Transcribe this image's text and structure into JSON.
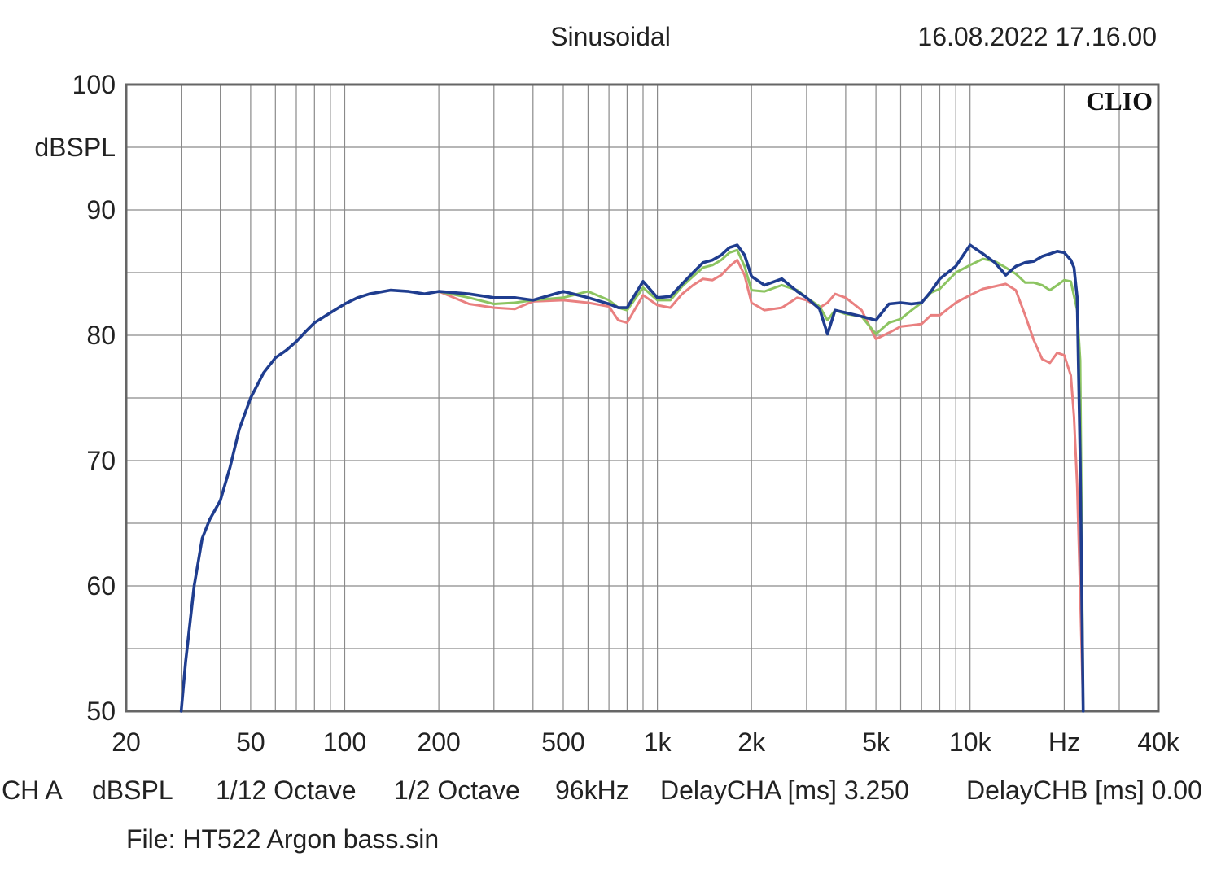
{
  "header": {
    "title": "Sinusoidal",
    "datetime": "16.08.2022 17.16.00",
    "brand": "CLIO"
  },
  "footer": {
    "items": [
      "CH A",
      "dBSPL",
      "1/12 Octave",
      "1/2 Octave",
      "96kHz",
      "DelayCHA [ms] 3.250",
      "DelayCHB [ms] 0.00"
    ],
    "file": "File: HT522 Argon bass.sin"
  },
  "colors": {
    "blue": "#1f3d8f",
    "green": "#8cc461",
    "red": "#e98080",
    "grid": "#8a8a8a",
    "frame": "#666666"
  },
  "chart_data": {
    "type": "line",
    "title": "Sinusoidal",
    "xlabel": "Hz",
    "ylabel": "dBSPL",
    "xscale": "log",
    "xlim": [
      20,
      40000
    ],
    "ylim": [
      50,
      100
    ],
    "grid": true,
    "x_tick_labels": [
      {
        "value": 20,
        "label": "20"
      },
      {
        "value": 50,
        "label": "50"
      },
      {
        "value": 100,
        "label": "100"
      },
      {
        "value": 200,
        "label": "200"
      },
      {
        "value": 500,
        "label": "500"
      },
      {
        "value": 1000,
        "label": "1k"
      },
      {
        "value": 2000,
        "label": "2k"
      },
      {
        "value": 5000,
        "label": "5k"
      },
      {
        "value": 10000,
        "label": "10k"
      },
      {
        "value": 20000,
        "label": "Hz"
      },
      {
        "value": 40000,
        "label": "40k"
      }
    ],
    "y_tick_labels": [
      {
        "value": 100,
        "label": "100"
      },
      {
        "value": 90,
        "label": "90"
      },
      {
        "value": 80,
        "label": "80"
      },
      {
        "value": 70,
        "label": "70"
      },
      {
        "value": 60,
        "label": "60"
      },
      {
        "value": 50,
        "label": "50"
      }
    ],
    "series": [
      {
        "name": "red",
        "color": "#e98080",
        "x": [
          200,
          250,
          300,
          350,
          400,
          500,
          600,
          700,
          750,
          800,
          900,
          1000,
          1100,
          1200,
          1300,
          1400,
          1500,
          1600,
          1700,
          1800,
          1900,
          2000,
          2200,
          2500,
          2800,
          3000,
          3300,
          3500,
          3700,
          4000,
          4500,
          5000,
          5500,
          6000,
          6500,
          7000,
          7500,
          8000,
          9000,
          10000,
          11000,
          12000,
          13000,
          14000,
          15000,
          16000,
          17000,
          18000,
          19000,
          20000,
          21000,
          21500,
          22000,
          22500,
          23000
        ],
        "y": [
          83.5,
          82.5,
          82.2,
          82.1,
          82.7,
          82.8,
          82.6,
          82.3,
          81.2,
          81.0,
          83.2,
          82.4,
          82.2,
          83.3,
          84.0,
          84.5,
          84.4,
          84.8,
          85.5,
          86.0,
          84.8,
          82.6,
          82.0,
          82.2,
          83.0,
          82.8,
          82.2,
          82.6,
          83.3,
          83.0,
          82.0,
          79.7,
          80.2,
          80.7,
          80.8,
          80.9,
          81.6,
          81.6,
          82.6,
          83.2,
          83.7,
          83.9,
          84.1,
          83.6,
          81.6,
          79.6,
          78.1,
          77.8,
          78.6,
          78.4,
          76.8,
          73.5,
          68.0,
          59.5,
          50.0
        ]
      },
      {
        "name": "green",
        "color": "#8cc461",
        "x": [
          200,
          250,
          300,
          350,
          400,
          500,
          600,
          700,
          750,
          800,
          900,
          1000,
          1100,
          1200,
          1300,
          1400,
          1500,
          1600,
          1700,
          1800,
          1900,
          2000,
          2200,
          2500,
          2800,
          3000,
          3300,
          3500,
          3700,
          4000,
          4500,
          5000,
          5500,
          6000,
          6500,
          7000,
          7500,
          8000,
          9000,
          10000,
          11000,
          12000,
          13000,
          14000,
          15000,
          16000,
          17000,
          18000,
          19000,
          20000,
          21000,
          22000,
          22500,
          23000
        ],
        "y": [
          83.5,
          83.0,
          82.5,
          82.6,
          82.8,
          83.0,
          83.5,
          82.8,
          82.2,
          82.0,
          83.8,
          82.8,
          82.8,
          83.9,
          84.7,
          85.4,
          85.6,
          86.0,
          86.6,
          86.8,
          85.5,
          83.6,
          83.5,
          84.0,
          83.6,
          83.0,
          82.3,
          81.2,
          82.0,
          81.7,
          81.5,
          80.1,
          81.0,
          81.3,
          82.0,
          82.6,
          83.4,
          83.7,
          85.0,
          85.6,
          86.1,
          85.9,
          85.4,
          84.9,
          84.2,
          84.2,
          84.0,
          83.6,
          84.0,
          84.4,
          84.3,
          82.0,
          78.0,
          50.0
        ]
      },
      {
        "name": "blue",
        "color": "#1f3d8f",
        "x": [
          30,
          31,
          33,
          35,
          37,
          40,
          43,
          46,
          50,
          55,
          60,
          65,
          70,
          75,
          80,
          90,
          100,
          110,
          120,
          140,
          160,
          180,
          200,
          250,
          300,
          350,
          400,
          500,
          600,
          700,
          750,
          800,
          900,
          1000,
          1100,
          1200,
          1300,
          1400,
          1500,
          1600,
          1700,
          1800,
          1900,
          2000,
          2200,
          2500,
          2800,
          3000,
          3300,
          3500,
          3700,
          4000,
          4500,
          5000,
          5500,
          6000,
          6500,
          7000,
          7500,
          8000,
          9000,
          10000,
          11000,
          12000,
          13000,
          14000,
          15000,
          16000,
          17000,
          18000,
          19000,
          20000,
          21000,
          21500,
          22000,
          22500,
          23000
        ],
        "y": [
          50.0,
          54.0,
          60.0,
          63.8,
          65.3,
          66.8,
          69.5,
          72.5,
          75.0,
          77.0,
          78.2,
          78.8,
          79.5,
          80.3,
          81.0,
          81.8,
          82.5,
          83.0,
          83.3,
          83.6,
          83.5,
          83.3,
          83.5,
          83.3,
          83.0,
          83.0,
          82.8,
          83.5,
          83.0,
          82.5,
          82.2,
          82.2,
          84.3,
          83.0,
          83.1,
          84.1,
          85.0,
          85.8,
          86.0,
          86.4,
          87.0,
          87.2,
          86.4,
          84.7,
          84.0,
          84.5,
          83.5,
          83.0,
          82.1,
          80.1,
          82.0,
          81.8,
          81.5,
          81.2,
          82.5,
          82.6,
          82.5,
          82.6,
          83.5,
          84.5,
          85.5,
          87.2,
          86.5,
          85.8,
          84.8,
          85.5,
          85.8,
          85.9,
          86.3,
          86.5,
          86.7,
          86.6,
          86.0,
          85.4,
          83.0,
          70.0,
          50.0
        ]
      }
    ]
  }
}
